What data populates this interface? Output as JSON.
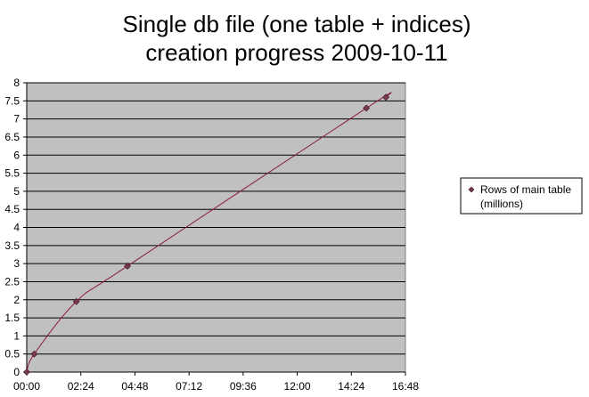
{
  "chart_data": {
    "type": "line",
    "title_lines": [
      "Single db file (one table + indices)",
      "creation progress 2009-10-11"
    ],
    "xlabel": "",
    "ylabel": "",
    "x_ticks": [
      "00:00",
      "02:24",
      "04:48",
      "07:12",
      "09:36",
      "12:00",
      "14:24",
      "16:48"
    ],
    "y_ticks": [
      "0",
      "0.5",
      "1",
      "1.5",
      "2",
      "2.5",
      "3",
      "3.5",
      "4",
      "4.5",
      "5",
      "5.5",
      "6",
      "6.5",
      "7",
      "7.5",
      "8"
    ],
    "xlim_hours": [
      0,
      16.8
    ],
    "ylim": [
      0,
      8
    ],
    "grid": true,
    "legend_position": "right",
    "series": [
      {
        "name": "Rows of main table (millions)",
        "legend_lines": [
          "Rows of main table",
          "(millions)"
        ],
        "color": "#8B1A4A",
        "marker_color": "#7A3A4E",
        "points": [
          {
            "x": "00:00",
            "y": 0
          },
          {
            "x": "00:20",
            "y": 0.5
          },
          {
            "x": "02:12",
            "y": 1.95
          },
          {
            "x": "04:28",
            "y": 2.93
          },
          {
            "x": "15:04",
            "y": 7.3
          },
          {
            "x": "15:56",
            "y": 7.6
          }
        ]
      }
    ]
  },
  "colors": {
    "plot_background": "#C0C0C0",
    "grid": "#000000",
    "legend_background": "#FFFFFF"
  }
}
